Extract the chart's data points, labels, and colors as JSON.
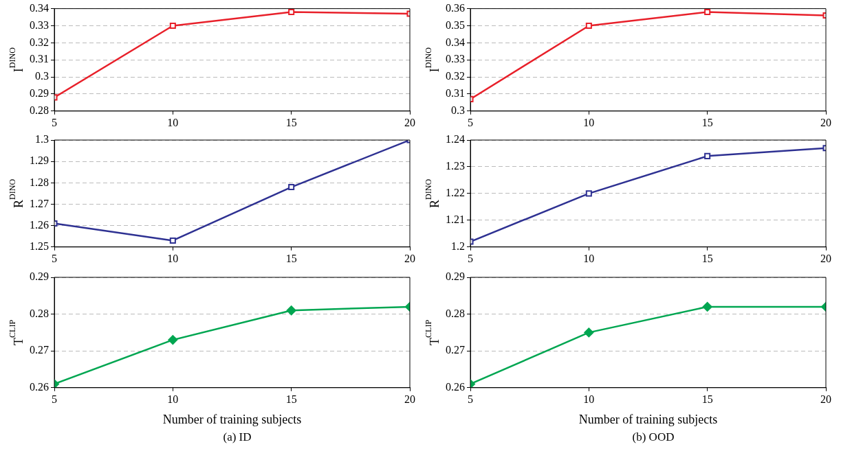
{
  "chart_data": [
    {
      "type": "line",
      "x": [
        5,
        10,
        15,
        20
      ],
      "series": [
        {
          "color": "#e8202a",
          "values": [
            0.288,
            0.33,
            0.338,
            0.337
          ]
        }
      ],
      "marker": "square",
      "ylabel": "I$^{DINO}$",
      "xlim": [
        5,
        20
      ],
      "xticks": [
        5,
        10,
        15,
        20
      ],
      "ylim": [
        0.28,
        0.34
      ],
      "yticks": [
        0.28,
        0.29,
        0.3,
        0.31,
        0.32,
        0.33,
        0.34
      ],
      "grid": "y",
      "legend": false
    },
    {
      "type": "line",
      "x": [
        5,
        10,
        15,
        20
      ],
      "series": [
        {
          "color": "#e8202a",
          "values": [
            0.307,
            0.35,
            0.358,
            0.356
          ]
        }
      ],
      "marker": "square",
      "ylabel": "I$^{DINO}$",
      "xlim": [
        5,
        20
      ],
      "xticks": [
        5,
        10,
        15,
        20
      ],
      "ylim": [
        0.3,
        0.36
      ],
      "yticks": [
        0.3,
        0.31,
        0.32,
        0.33,
        0.34,
        0.35,
        0.36
      ],
      "grid": "y",
      "legend": false
    },
    {
      "type": "line",
      "x": [
        5,
        10,
        15,
        20
      ],
      "series": [
        {
          "color": "#2e3192",
          "values": [
            1.261,
            1.253,
            1.278,
            1.3
          ]
        }
      ],
      "marker": "square",
      "ylabel": "R$^{DINO}$",
      "xlim": [
        5,
        20
      ],
      "xticks": [
        5,
        10,
        15,
        20
      ],
      "ylim": [
        1.25,
        1.3
      ],
      "yticks": [
        1.25,
        1.26,
        1.27,
        1.28,
        1.29,
        1.3
      ],
      "grid": "y",
      "legend": false
    },
    {
      "type": "line",
      "x": [
        5,
        10,
        15,
        20
      ],
      "series": [
        {
          "color": "#2e3192",
          "values": [
            1.202,
            1.22,
            1.234,
            1.237
          ]
        }
      ],
      "marker": "square",
      "ylabel": "R$^{DINO}$",
      "xlim": [
        5,
        20
      ],
      "xticks": [
        5,
        10,
        15,
        20
      ],
      "ylim": [
        1.2,
        1.24
      ],
      "yticks": [
        1.2,
        1.21,
        1.22,
        1.23,
        1.24
      ],
      "grid": "y",
      "legend": false
    },
    {
      "type": "line",
      "x": [
        5,
        10,
        15,
        20
      ],
      "series": [
        {
          "color": "#00a651",
          "values": [
            0.261,
            0.273,
            0.281,
            0.282
          ]
        }
      ],
      "marker": "diamond",
      "ylabel": "T$^{CLIP}$",
      "xlabel": "Number of training subjects",
      "annotations": [
        "(a) ID"
      ],
      "xlim": [
        5,
        20
      ],
      "xticks": [
        5,
        10,
        15,
        20
      ],
      "ylim": [
        0.26,
        0.29
      ],
      "yticks": [
        0.26,
        0.27,
        0.28,
        0.29
      ],
      "grid": "y",
      "legend": false
    },
    {
      "type": "line",
      "x": [
        5,
        10,
        15,
        20
      ],
      "series": [
        {
          "color": "#00a651",
          "values": [
            0.261,
            0.275,
            0.282,
            0.282
          ]
        }
      ],
      "marker": "diamond",
      "ylabel": "T$^{CLIP}$",
      "xlabel": "Number of training subjects",
      "annotations": [
        "(b) OOD"
      ],
      "xlim": [
        5,
        20
      ],
      "xticks": [
        5,
        10,
        15,
        20
      ],
      "ylim": [
        0.26,
        0.29
      ],
      "yticks": [
        0.26,
        0.27,
        0.28,
        0.29
      ],
      "grid": "y",
      "legend": false
    }
  ]
}
